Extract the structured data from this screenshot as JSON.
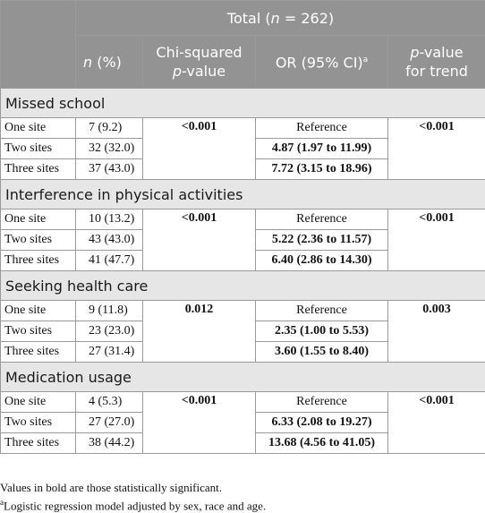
{
  "header": {
    "total": "Total (n = 262)",
    "col_n": "n (%)",
    "col_chi_line1": "Chi-squared",
    "col_chi_line2": "p-value",
    "col_or": "OR (95% CI)",
    "col_or_sup": "a",
    "col_trend_line1": "p-value",
    "col_trend_line2": "for trend"
  },
  "sections": [
    {
      "title": "Missed school",
      "chi_p": "<0.001",
      "trend_p": "<0.001",
      "rows": [
        {
          "label": "One site",
          "n": "7 (9.2)",
          "or": "Reference"
        },
        {
          "label": "Two sites",
          "n": "32 (32.0)",
          "or": "4.87 (1.97 to 11.99)"
        },
        {
          "label": "Three sites",
          "n": "37 (43.0)",
          "or": "7.72 (3.15 to 18.96)"
        }
      ]
    },
    {
      "title": "Interference in physical activities",
      "chi_p": "<0.001",
      "trend_p": "<0.001",
      "rows": [
        {
          "label": "One site",
          "n": "10 (13.2)",
          "or": "Reference"
        },
        {
          "label": "Two sites",
          "n": "43 (43.0)",
          "or": "5.22 (2.36 to 11.57)"
        },
        {
          "label": "Three sites",
          "n": "41 (47.7)",
          "or": "6.40 (2.86 to 14.30)"
        }
      ]
    },
    {
      "title": "Seeking health care",
      "chi_p": "0.012",
      "trend_p": "0.003",
      "rows": [
        {
          "label": "One site",
          "n": "9 (11.8)",
          "or": "Reference"
        },
        {
          "label": "Two sites",
          "n": "23 (23.0)",
          "or": "2.35 (1.00 to 5.53)"
        },
        {
          "label": "Three sites",
          "n": "27 (31.4)",
          "or": "3.60 (1.55 to 8.40)"
        }
      ]
    },
    {
      "title": "Medication usage",
      "chi_p": "<0.001",
      "trend_p": "<0.001",
      "rows": [
        {
          "label": "One site",
          "n": "4 (5.3)",
          "or": "Reference"
        },
        {
          "label": "Two sites",
          "n": "27 (27.0)",
          "or": "6.33 (2.08 to 19.27)"
        },
        {
          "label": "Three sites",
          "n": "38 (44.2)",
          "or": "13.68 (4.56 to 41.05)"
        }
      ]
    }
  ],
  "footnotes": {
    "bold_note": "Values in bold are those statistically significant.",
    "a_marker": "a",
    "a_note": "Logistic regression model adjusted by sex, race and age."
  }
}
